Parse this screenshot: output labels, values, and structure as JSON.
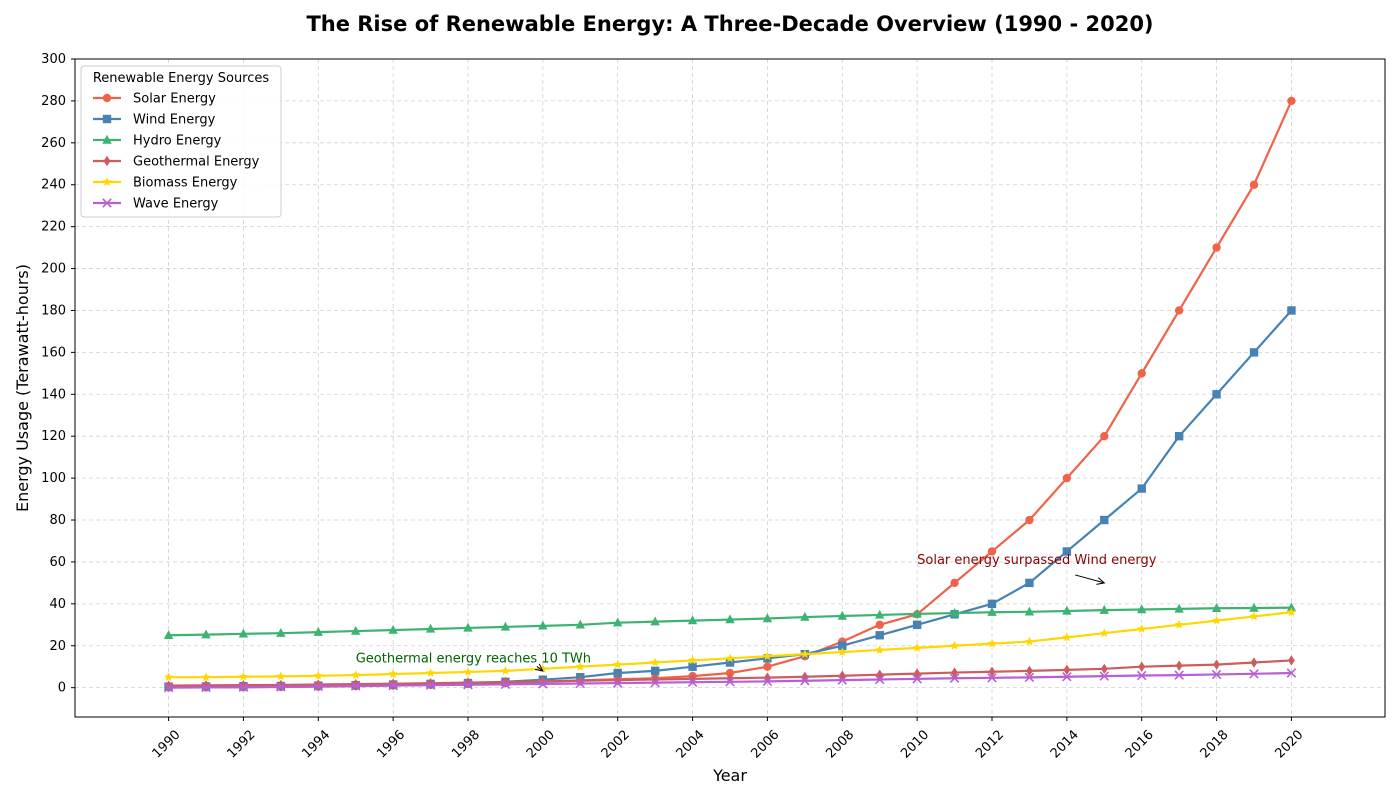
{
  "chart_data": {
    "type": "line",
    "title": "The Rise of Renewable Energy: A Three-Decade Overview (1990 - 2020)",
    "xlabel": "Year",
    "ylabel": "Energy Usage (Terawatt-hours)",
    "x": [
      1990,
      1991,
      1992,
      1993,
      1994,
      1995,
      1996,
      1997,
      1998,
      1999,
      2000,
      2001,
      2002,
      2003,
      2004,
      2005,
      2006,
      2007,
      2008,
      2009,
      2010,
      2011,
      2012,
      2013,
      2014,
      2015,
      2016,
      2017,
      2018,
      2019,
      2020
    ],
    "xticks": [
      1990,
      1992,
      1994,
      1996,
      1998,
      2000,
      2002,
      2004,
      2006,
      2008,
      2010,
      2012,
      2014,
      2016,
      2018,
      2020
    ],
    "xlim": [
      1987.5,
      2022.5
    ],
    "ylim": [
      -14,
      300
    ],
    "yticks": [
      0,
      20,
      40,
      60,
      80,
      100,
      120,
      140,
      160,
      180,
      200,
      220,
      240,
      260,
      280,
      300
    ],
    "grid": true,
    "legend": {
      "title": "Renewable Energy Sources",
      "placement": "top-left"
    },
    "series": [
      {
        "name": "Solar Energy",
        "color": "#f0624a",
        "marker": "circle",
        "values": [
          0.1,
          0.1,
          0.2,
          0.3,
          0.5,
          0.7,
          1,
          1.3,
          1.7,
          2.2,
          2.8,
          3.5,
          4,
          4.5,
          5.5,
          7,
          10,
          15,
          22,
          30,
          35,
          50,
          65,
          80,
          100,
          120,
          150,
          180,
          210,
          240,
          280
        ]
      },
      {
        "name": "Wind Energy",
        "color": "#4682b4",
        "marker": "square",
        "values": [
          0.5,
          0.6,
          0.7,
          0.8,
          1,
          1.2,
          1.5,
          1.8,
          2.2,
          2.8,
          3.8,
          5,
          7,
          8,
          10,
          12,
          14,
          16,
          20,
          25,
          30,
          35,
          40,
          50,
          65,
          80,
          95,
          120,
          140,
          160,
          180
        ]
      },
      {
        "name": "Hydro Energy",
        "color": "#3cb371",
        "marker": "triangle",
        "values": [
          25,
          25.3,
          25.7,
          26,
          26.5,
          27,
          27.5,
          28,
          28.5,
          29,
          29.5,
          30,
          31,
          31.5,
          32,
          32.5,
          33,
          33.7,
          34.2,
          34.7,
          35.2,
          35.6,
          36,
          36.2,
          36.6,
          37,
          37.3,
          37.6,
          37.9,
          38,
          38.2
        ]
      },
      {
        "name": "Geothermal Energy",
        "color": "#cd5c5c",
        "marker": "diamond",
        "values": [
          1,
          1.1,
          1.2,
          1.3,
          1.5,
          1.7,
          1.9,
          2.1,
          2.4,
          2.7,
          3,
          3.3,
          3.6,
          3.9,
          4.2,
          4.5,
          4.8,
          5.2,
          5.7,
          6.2,
          6.7,
          7.2,
          7.6,
          8,
          8.5,
          9,
          10,
          10.5,
          11,
          12,
          13
        ]
      },
      {
        "name": "Biomass Energy",
        "color": "#ffd700",
        "marker": "star",
        "values": [
          5,
          5,
          5.2,
          5.4,
          5.7,
          6,
          6.5,
          7,
          7.5,
          8,
          9,
          10,
          11,
          12,
          13,
          14,
          15,
          16,
          17,
          18,
          19,
          20,
          21,
          22,
          24,
          26,
          28,
          30,
          32,
          34,
          36
        ]
      },
      {
        "name": "Wave Energy",
        "color": "#b85fd6",
        "marker": "x",
        "values": [
          0,
          0.1,
          0.2,
          0.4,
          0.6,
          0.8,
          1,
          1.2,
          1.4,
          1.6,
          1.8,
          2,
          2.2,
          2.4,
          2.6,
          2.8,
          3,
          3.3,
          3.6,
          3.9,
          4.2,
          4.5,
          4.7,
          4.9,
          5.2,
          5.5,
          5.8,
          6,
          6.3,
          6.6,
          7
        ]
      }
    ],
    "annotations": [
      {
        "text": "Solar energy surpassed Wind energy",
        "color": "#8b0000",
        "x": 2010,
        "y": 60,
        "arrow_to": [
          2015,
          50
        ]
      },
      {
        "text": "Geothermal energy reaches 10 TWh",
        "color": "#006400",
        "x": 1995,
        "y": 13,
        "arrow_to": [
          2000,
          8
        ]
      }
    ]
  }
}
